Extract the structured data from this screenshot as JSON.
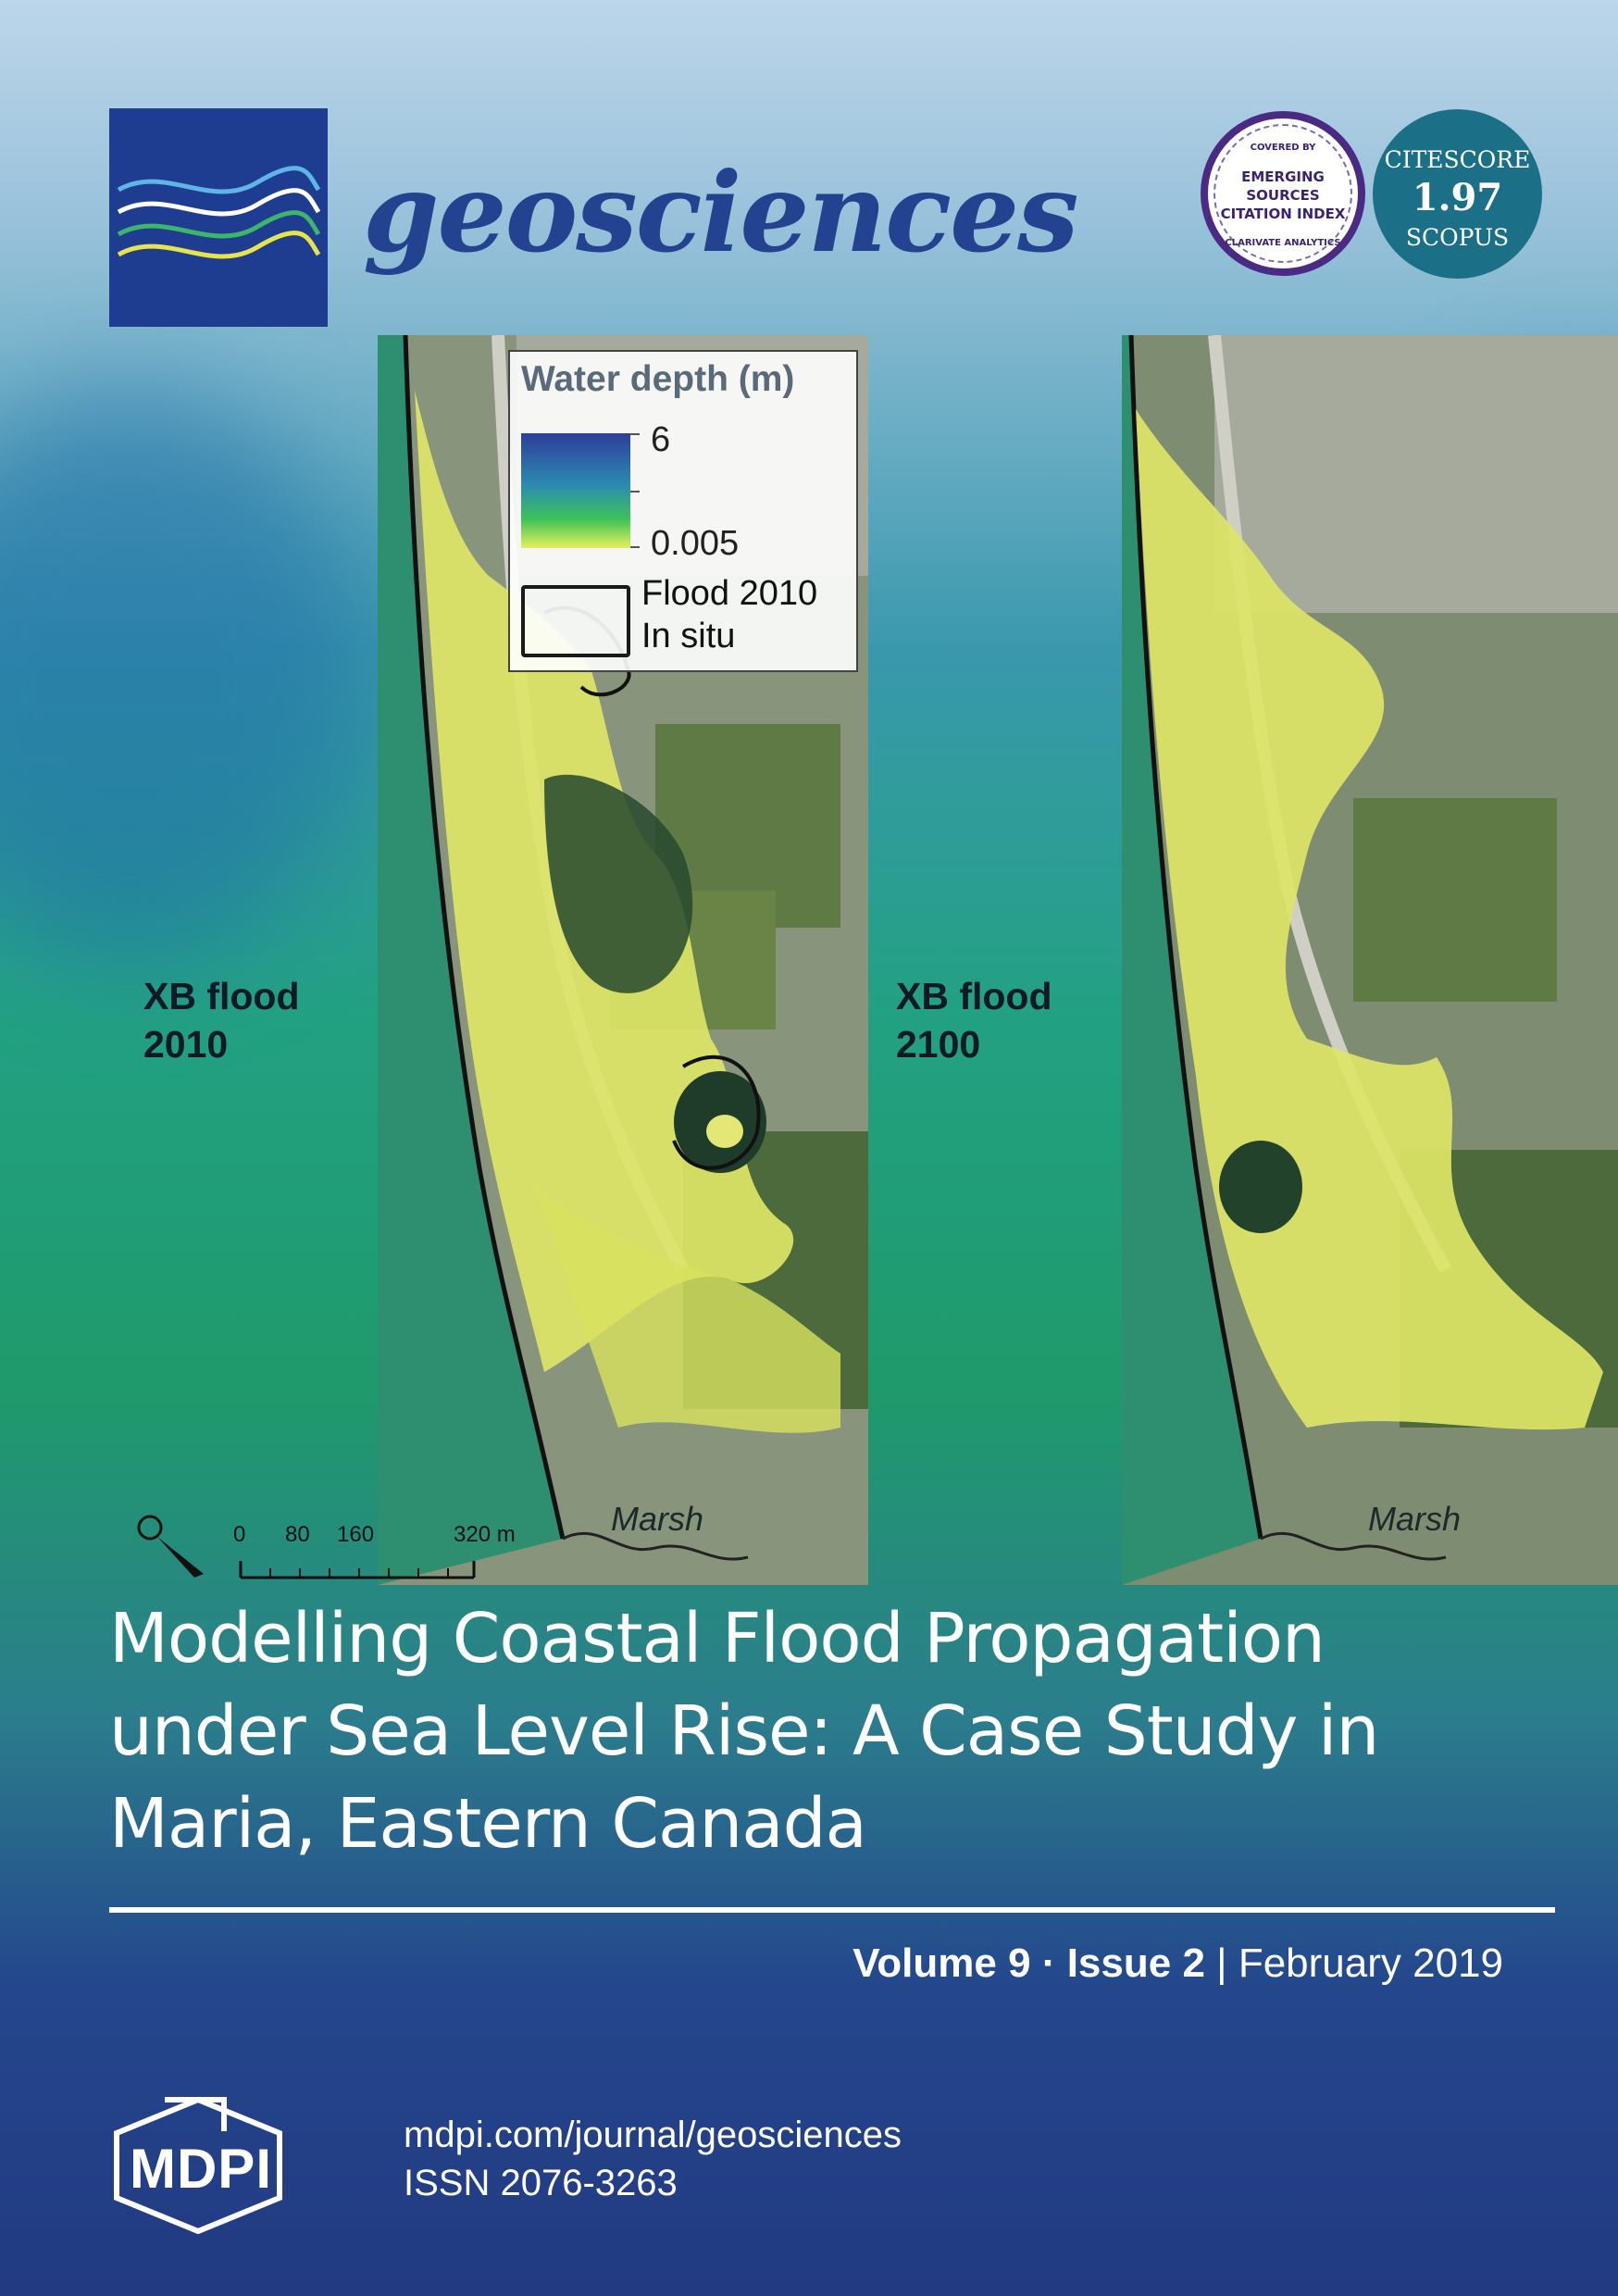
{
  "journal": {
    "title": "geosciences"
  },
  "badges": {
    "esci": {
      "top": "COVERED BY",
      "lines": [
        "EMERGING",
        "SOURCES",
        "CITATION INDEX"
      ],
      "bottom": "CLARIVATE ANALYTICS"
    },
    "citescore": {
      "label": "CITESCORE",
      "value": "1.97",
      "source": "SCOPUS"
    }
  },
  "figure": {
    "legend": {
      "title": "Water depth (m)",
      "max": "6",
      "min": "0.005",
      "flood_line1": "Flood 2010",
      "flood_line2": "In situ"
    },
    "left_label": {
      "line1": "XB flood",
      "line2": "2010"
    },
    "right_label": {
      "line1": "XB flood",
      "line2": "2100"
    },
    "marsh_label": "Marsh",
    "scale": {
      "ticks": [
        "0",
        "80",
        "160",
        "320 m"
      ]
    }
  },
  "article": {
    "title_lines": [
      "Modelling Coastal Flood Propagation",
      "under Sea Level Rise: A Case Study in",
      "Maria, Eastern Canada"
    ]
  },
  "issue": {
    "volume": "Volume 9",
    "sep": "·",
    "issue": "Issue 2",
    "bar": "|",
    "date": "February 2019"
  },
  "publisher": {
    "name": "MDPI",
    "url": "mdpi.com/journal/geosciences",
    "issn": "ISSN 2076-3263"
  },
  "colors": {
    "brand_blue": "#1e3d91",
    "title_blue": "#23428f",
    "citescore_teal": "#1b6f86",
    "esci_purple": "#4a2a82"
  }
}
